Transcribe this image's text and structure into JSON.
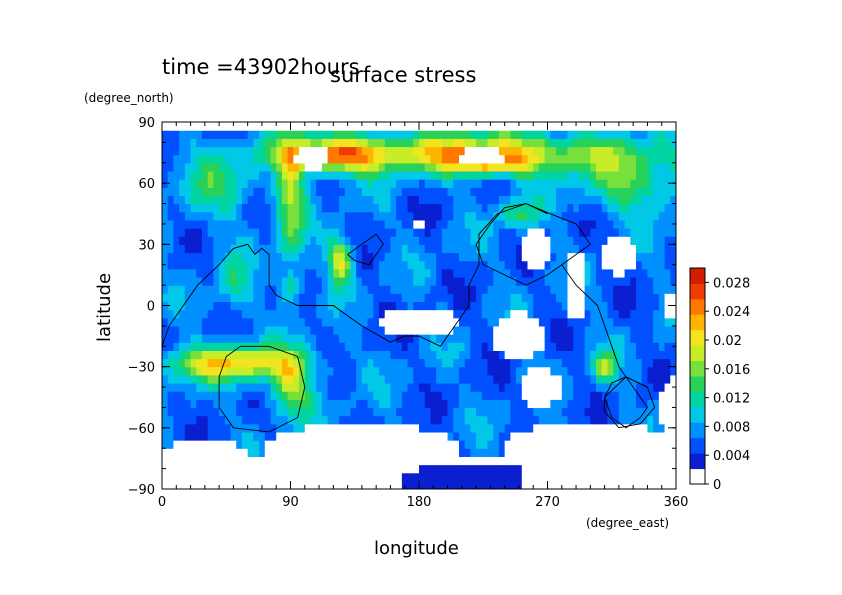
{
  "chart_data": {
    "type": "heatmap",
    "title": "surface stress",
    "time_label": "time =43902hours",
    "xlabel": "longitude",
    "ylabel": "latitude",
    "xunits": "(degree_east)",
    "yunits": "(degree_north)",
    "xlim": [
      0,
      360
    ],
    "ylim": [
      -90,
      90
    ],
    "xticks": [
      "0",
      "90",
      "180",
      "270",
      "360"
    ],
    "yticks": [
      "90",
      "60",
      "30",
      "0",
      "−30",
      "−60",
      "−90"
    ],
    "colorbar": {
      "range": [
        0,
        0.03
      ],
      "tick_labels": [
        "0.028",
        "0.024",
        "0.02",
        "0.016",
        "0.012",
        "0.008",
        "0.004",
        "0"
      ],
      "colors": [
        "#ffffff",
        "#0a1fd0",
        "#0050ff",
        "#0090ff",
        "#00c8e6",
        "#00d4a0",
        "#28d25a",
        "#78e03c",
        "#c8ec28",
        "#f2e41e",
        "#ffb400",
        "#ff7800",
        "#f03c00",
        "#d21e00"
      ]
    },
    "field_blobs": [
      {
        "lon": 220,
        "lat": 75,
        "sx": 75,
        "sy": 7,
        "amp": 0.016
      },
      {
        "lon": 230,
        "lat": 70,
        "sx": 18,
        "sy": 4,
        "amp": 0.01
      },
      {
        "lon": 120,
        "lat": 74,
        "sx": 22,
        "sy": 6,
        "amp": 0.016
      },
      {
        "lon": 90,
        "lat": 55,
        "sx": 7,
        "sy": 22,
        "amp": 0.012
      },
      {
        "lon": 125,
        "lat": 22,
        "sx": 6,
        "sy": 8,
        "amp": 0.015
      },
      {
        "lon": 90,
        "lat": 10,
        "sx": 5,
        "sy": 5,
        "amp": 0.009
      },
      {
        "lon": 50,
        "lat": -28,
        "sx": 35,
        "sy": 6,
        "amp": 0.016
      },
      {
        "lon": 90,
        "lat": -40,
        "sx": 10,
        "sy": 10,
        "amp": 0.012
      },
      {
        "lon": 310,
        "lat": -30,
        "sx": 6,
        "sy": 5,
        "amp": 0.01
      },
      {
        "lon": 250,
        "lat": 45,
        "sx": 10,
        "sy": 5,
        "amp": 0.008
      },
      {
        "lon": 330,
        "lat": 60,
        "sx": 25,
        "sy": 10,
        "amp": 0.009
      },
      {
        "lon": 40,
        "lat": 60,
        "sx": 20,
        "sy": 12,
        "amp": 0.006
      },
      {
        "lon": 50,
        "lat": 10,
        "sx": 8,
        "sy": 10,
        "amp": 0.006
      }
    ],
    "background_level": 0.0045,
    "undefined_regions": [
      {
        "lon": 105,
        "lat": 73,
        "rx": 12,
        "ry": 6
      },
      {
        "lon": 225,
        "lat": 73,
        "rx": 16,
        "ry": 5
      },
      {
        "lon": 262,
        "lat": 28,
        "rx": 12,
        "ry": 10
      },
      {
        "lon": 320,
        "lat": 25,
        "rx": 12,
        "ry": 10
      },
      {
        "lon": 290,
        "lat": 10,
        "rx": 8,
        "ry": 18
      },
      {
        "lon": 180,
        "lat": -8,
        "rx": 30,
        "ry": 8
      },
      {
        "lon": 250,
        "lat": -15,
        "rx": 18,
        "ry": 12
      },
      {
        "lon": 360,
        "lat": 0,
        "rx": 10,
        "ry": 8
      },
      {
        "lon": 140,
        "lat": -70,
        "rx": 70,
        "ry": 12
      },
      {
        "lon": 300,
        "lat": -70,
        "rx": 60,
        "ry": 14
      },
      {
        "lon": 360,
        "lat": -50,
        "rx": 12,
        "ry": 15
      },
      {
        "lon": 30,
        "lat": -75,
        "rx": 30,
        "ry": 10
      },
      {
        "lon": 40,
        "lat": 87,
        "rx": 50,
        "ry": 3
      },
      {
        "lon": 310,
        "lat": 88,
        "rx": 40,
        "ry": 3
      },
      {
        "lon": 180,
        "lat": 40,
        "rx": 4,
        "ry": 3
      },
      {
        "lon": 265,
        "lat": -40,
        "rx": 15,
        "ry": 10
      }
    ],
    "antarctic_patch": {
      "lon": [
        170,
        250
      ],
      "lat": [
        -82,
        -90
      ]
    },
    "coastlines": [
      [
        [
          0,
          -20
        ],
        [
          5,
          -10
        ],
        [
          15,
          0
        ],
        [
          25,
          10
        ],
        [
          40,
          20
        ],
        [
          50,
          28
        ],
        [
          60,
          30
        ],
        [
          65,
          25
        ],
        [
          70,
          28
        ],
        [
          75,
          25
        ],
        [
          75,
          10
        ],
        [
          80,
          5
        ],
        [
          95,
          0
        ],
        [
          110,
          0
        ],
        [
          120,
          0
        ],
        [
          130,
          -5
        ],
        [
          140,
          -10
        ],
        [
          160,
          -18
        ],
        [
          170,
          -15
        ],
        [
          180,
          -15
        ],
        [
          195,
          -20
        ],
        [
          205,
          -10
        ],
        [
          215,
          0
        ],
        [
          215,
          10
        ],
        [
          222,
          20
        ],
        [
          222,
          35
        ],
        [
          235,
          45
        ],
        [
          255,
          50
        ],
        [
          272,
          45
        ],
        [
          290,
          40
        ],
        [
          300,
          30
        ],
        [
          290,
          25
        ],
        [
          280,
          20
        ],
        [
          270,
          15
        ],
        [
          255,
          10
        ],
        [
          240,
          15
        ],
        [
          225,
          20
        ],
        [
          220,
          30
        ],
        [
          230,
          40
        ],
        [
          240,
          48
        ],
        [
          255,
          50
        ],
        [
          270,
          45
        ]
      ],
      [
        [
          280,
          20
        ],
        [
          290,
          10
        ],
        [
          305,
          0
        ],
        [
          310,
          -10
        ],
        [
          315,
          -20
        ],
        [
          320,
          -30
        ],
        [
          330,
          -40
        ],
        [
          340,
          -50
        ],
        [
          335,
          -55
        ],
        [
          325,
          -60
        ],
        [
          315,
          -55
        ],
        [
          310,
          -45
        ],
        [
          315,
          -38
        ],
        [
          325,
          -35
        ],
        [
          340,
          -40
        ]
      ],
      [
        [
          40,
          -35
        ],
        [
          45,
          -25
        ],
        [
          55,
          -20
        ],
        [
          75,
          -20
        ],
        [
          95,
          -25
        ],
        [
          100,
          -40
        ],
        [
          95,
          -55
        ],
        [
          75,
          -62
        ],
        [
          50,
          -60
        ],
        [
          40,
          -50
        ],
        [
          40,
          -35
        ]
      ],
      [
        [
          130,
          25
        ],
        [
          140,
          30
        ],
        [
          150,
          35
        ],
        [
          155,
          30
        ],
        [
          145,
          20
        ],
        [
          135,
          22
        ],
        [
          130,
          25
        ]
      ],
      [
        [
          310,
          -45
        ],
        [
          325,
          -35
        ],
        [
          340,
          -40
        ],
        [
          345,
          -50
        ],
        [
          335,
          -58
        ],
        [
          320,
          -60
        ],
        [
          310,
          -52
        ],
        [
          310,
          -45
        ]
      ]
    ]
  }
}
